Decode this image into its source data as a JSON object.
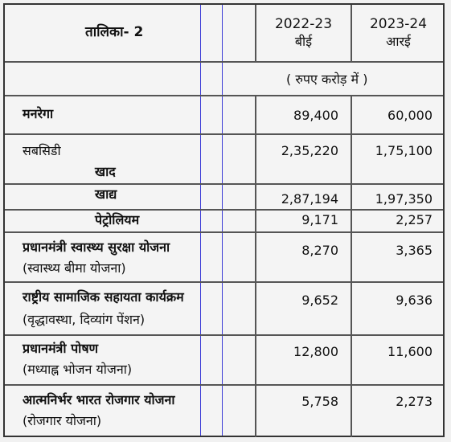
{
  "header": {
    "title": "तालिका- 2",
    "col1_year": "2022-23",
    "col1_type": "बीई",
    "col2_year": "2023-24",
    "col2_type": "आरई",
    "unit": "( रुपए करोड़ में )"
  },
  "rows": [
    {
      "label": "मनरेगा",
      "sub": "",
      "v1": "89,400",
      "v2": "60,000"
    },
    {
      "label": "सबसिडी",
      "sub": "खाद",
      "v1": "2,35,220",
      "v2": "1,75,100"
    },
    {
      "label": "खाद्य",
      "sub": "",
      "v1": "2,87,194",
      "v2": "1,97,350"
    },
    {
      "label": "पेट्रोलियम",
      "sub": "",
      "v1": "9,171",
      "v2": "2,257"
    },
    {
      "label": "प्रधानमंत्री स्वास्थ्य सुरक्षा योजना",
      "sub": "(स्वास्थ्य बीमा योजना)",
      "v1": "8,270",
      "v2": "3,365"
    },
    {
      "label": "राष्ट्रीय सामाजिक सहायता कार्यक्रम",
      "sub": "(वृद्धावस्था, दिव्यांग पेंशन)",
      "v1": "9,652",
      "v2": "9,636"
    },
    {
      "label": "प्रधानमंत्री पोषण",
      "sub": "(मध्याह्न भोजन योजना)",
      "v1": "12,800",
      "v2": "11,600"
    },
    {
      "label": "आत्मनिर्भर भारत रोजगार योजना",
      "sub": "(रोजगार योजना)",
      "v1": "5,758",
      "v2": "2,273"
    }
  ]
}
